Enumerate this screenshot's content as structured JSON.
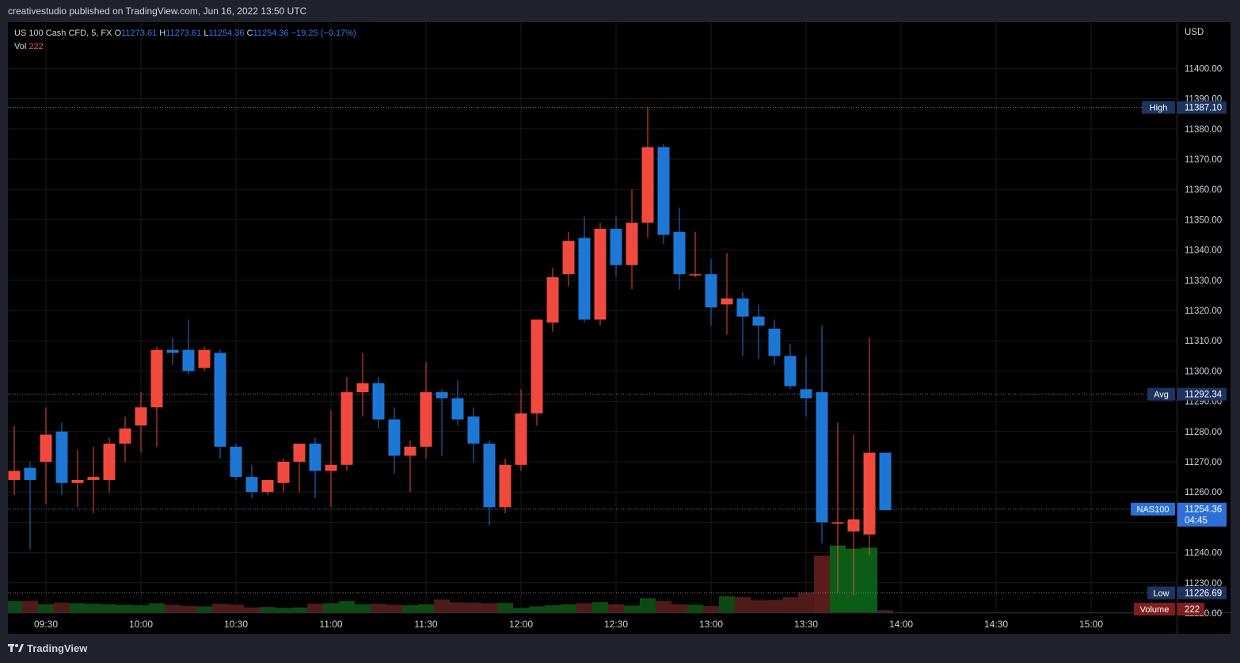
{
  "header": {
    "publisher_text": "creativestudio published on TradingView.com, Jun 16, 2022 13:50 UTC"
  },
  "legend": {
    "symbol": "US 100 Cash CFD, 5, FX",
    "open_label": "O",
    "open": "11273.61",
    "high_label": "H",
    "high": "11273.61",
    "low_label": "L",
    "low": "11254.36",
    "close_label": "C",
    "close": "11254.36",
    "change": "−19.25 (−0.17%)",
    "vol_label": "Vol",
    "vol": "222"
  },
  "footer": {
    "brand": "TradingView"
  },
  "colors": {
    "up": "#1e77d4",
    "down": "#f04a3e",
    "vol_up": "#0d4a13",
    "vol_down": "#4e1a1a",
    "vol_up_hi": "#0b5d15",
    "vol_down_hi": "#5a1b1b",
    "axis_text": "#d1d4dc",
    "grid": "#1a1a1a"
  },
  "chart_data": {
    "type": "candlestick",
    "currency_label": "USD",
    "yticks": [
      11220,
      11230,
      11240,
      11250,
      11260,
      11270,
      11280,
      11290,
      11300,
      11310,
      11320,
      11330,
      11340,
      11350,
      11360,
      11370,
      11380,
      11390,
      11400
    ],
    "xticks": [
      "09:30",
      "10:00",
      "10:30",
      "11:00",
      "11:30",
      "12:00",
      "12:30",
      "13:00",
      "13:30",
      "14:00",
      "14:30",
      "15:00"
    ],
    "price_labels": [
      {
        "name": "High",
        "value": "11387.10",
        "price": 11387.1,
        "style": "navy"
      },
      {
        "name": "Avg",
        "value": "11292.34",
        "price": 11292.34,
        "style": "navy"
      },
      {
        "name": "NAS100",
        "value": "11254.36",
        "sub": "04:45",
        "price": 11254.36,
        "style": "blue"
      },
      {
        "name": "Low",
        "value": "11226.69",
        "price": 11226.69,
        "style": "navy"
      }
    ],
    "volume_label": {
      "name": "Volume",
      "value": "222"
    },
    "candles": [
      {
        "t": "09:20",
        "o": 11264,
        "h": 11282,
        "l": 11259,
        "c": 11267,
        "v": 210
      },
      {
        "t": "09:25",
        "o": 11268,
        "h": 11270,
        "l": 11241,
        "c": 11264,
        "v": 215
      },
      {
        "t": "09:30",
        "o": 11270,
        "h": 11288,
        "l": 11256,
        "c": 11279,
        "v": 150
      },
      {
        "t": "09:35",
        "o": 11280,
        "h": 11283,
        "l": 11259,
        "c": 11263,
        "v": 180
      },
      {
        "t": "09:40",
        "o": 11263,
        "h": 11274,
        "l": 11255,
        "c": 11264,
        "v": 170
      },
      {
        "t": "09:45",
        "o": 11264,
        "h": 11275,
        "l": 11253,
        "c": 11265,
        "v": 160
      },
      {
        "t": "09:50",
        "o": 11264,
        "h": 11278,
        "l": 11260,
        "c": 11276,
        "v": 150
      },
      {
        "t": "09:55",
        "o": 11276,
        "h": 11285,
        "l": 11270,
        "c": 11281,
        "v": 140
      },
      {
        "t": "10:00",
        "o": 11282,
        "h": 11293,
        "l": 11273,
        "c": 11288,
        "v": 130
      },
      {
        "t": "10:05",
        "o": 11288,
        "h": 11308,
        "l": 11275,
        "c": 11307,
        "v": 170
      },
      {
        "t": "10:10",
        "o": 11307,
        "h": 11311,
        "l": 11302,
        "c": 11306,
        "v": 140
      },
      {
        "t": "10:15",
        "o": 11307,
        "h": 11317,
        "l": 11299,
        "c": 11300,
        "v": 120
      },
      {
        "t": "10:20",
        "o": 11301,
        "h": 11308,
        "l": 11300,
        "c": 11307,
        "v": 110
      },
      {
        "t": "10:25",
        "o": 11306,
        "h": 11307,
        "l": 11271,
        "c": 11275,
        "v": 160
      },
      {
        "t": "10:30",
        "o": 11275,
        "h": 11276,
        "l": 11264,
        "c": 11265,
        "v": 145
      },
      {
        "t": "10:35",
        "o": 11265,
        "h": 11269,
        "l": 11258,
        "c": 11260,
        "v": 90
      },
      {
        "t": "10:40",
        "o": 11260,
        "h": 11264,
        "l": 11259,
        "c": 11264,
        "v": 100
      },
      {
        "t": "10:45",
        "o": 11263,
        "h": 11271,
        "l": 11260,
        "c": 11270,
        "v": 80
      },
      {
        "t": "10:50",
        "o": 11270,
        "h": 11276,
        "l": 11260,
        "c": 11276,
        "v": 90
      },
      {
        "t": "10:55",
        "o": 11276,
        "h": 11278,
        "l": 11258,
        "c": 11267,
        "v": 160
      },
      {
        "t": "11:00",
        "o": 11267,
        "h": 11287,
        "l": 11255,
        "c": 11269,
        "v": 170
      },
      {
        "t": "11:05",
        "o": 11269,
        "h": 11298,
        "l": 11267,
        "c": 11293,
        "v": 210
      },
      {
        "t": "11:10",
        "o": 11293,
        "h": 11306,
        "l": 11285,
        "c": 11296,
        "v": 150
      },
      {
        "t": "11:15",
        "o": 11296,
        "h": 11298,
        "l": 11281,
        "c": 11284,
        "v": 160
      },
      {
        "t": "11:20",
        "o": 11284,
        "h": 11288,
        "l": 11266,
        "c": 11272,
        "v": 140
      },
      {
        "t": "11:25",
        "o": 11272,
        "h": 11277,
        "l": 11260,
        "c": 11275,
        "v": 130
      },
      {
        "t": "11:30",
        "o": 11275,
        "h": 11303,
        "l": 11271,
        "c": 11293,
        "v": 150
      },
      {
        "t": "11:35",
        "o": 11293,
        "h": 11294,
        "l": 11272,
        "c": 11291,
        "v": 240
      },
      {
        "t": "11:40",
        "o": 11291,
        "h": 11297,
        "l": 11282,
        "c": 11284,
        "v": 185
      },
      {
        "t": "11:45",
        "o": 11285,
        "h": 11288,
        "l": 11270,
        "c": 11276,
        "v": 180
      },
      {
        "t": "11:50",
        "o": 11276,
        "h": 11277,
        "l": 11249,
        "c": 11255,
        "v": 170
      },
      {
        "t": "11:55",
        "o": 11255,
        "h": 11271,
        "l": 11253,
        "c": 11269,
        "v": 175
      },
      {
        "t": "12:00",
        "o": 11269,
        "h": 11294,
        "l": 11267,
        "c": 11286,
        "v": 80
      },
      {
        "t": "12:05",
        "o": 11286,
        "h": 11317,
        "l": 11282,
        "c": 11317,
        "v": 110
      },
      {
        "t": "12:10",
        "o": 11316,
        "h": 11334,
        "l": 11313,
        "c": 11331,
        "v": 130
      },
      {
        "t": "12:15",
        "o": 11332,
        "h": 11346,
        "l": 11328,
        "c": 11343,
        "v": 150
      },
      {
        "t": "12:20",
        "o": 11344,
        "h": 11351,
        "l": 11316,
        "c": 11317,
        "v": 170
      },
      {
        "t": "12:25",
        "o": 11317,
        "h": 11349,
        "l": 11315,
        "c": 11347,
        "v": 190
      },
      {
        "t": "12:30",
        "o": 11347,
        "h": 11351,
        "l": 11331,
        "c": 11335,
        "v": 150
      },
      {
        "t": "12:35",
        "o": 11335,
        "h": 11360,
        "l": 11327,
        "c": 11349,
        "v": 125
      },
      {
        "t": "12:40",
        "o": 11349,
        "h": 11387,
        "l": 11344,
        "c": 11374,
        "v": 260
      },
      {
        "t": "12:45",
        "o": 11374,
        "h": 11375,
        "l": 11342,
        "c": 11345,
        "v": 210
      },
      {
        "t": "12:50",
        "o": 11346,
        "h": 11354,
        "l": 11327,
        "c": 11332,
        "v": 150
      },
      {
        "t": "12:55",
        "o": 11332,
        "h": 11346,
        "l": 11331,
        "c": 11332,
        "v": 140
      },
      {
        "t": "13:00",
        "o": 11332,
        "h": 11337,
        "l": 11315,
        "c": 11321,
        "v": 120
      },
      {
        "t": "13:05",
        "o": 11322,
        "h": 11339,
        "l": 11312,
        "c": 11324,
        "v": 300
      },
      {
        "t": "13:10",
        "o": 11324,
        "h": 11326,
        "l": 11305,
        "c": 11318,
        "v": 280
      },
      {
        "t": "13:15",
        "o": 11318,
        "h": 11322,
        "l": 11304,
        "c": 11315,
        "v": 225
      },
      {
        "t": "13:20",
        "o": 11314,
        "h": 11317,
        "l": 11302,
        "c": 11305,
        "v": 230
      },
      {
        "t": "13:25",
        "o": 11305,
        "h": 11309,
        "l": 11294,
        "c": 11295,
        "v": 280
      },
      {
        "t": "13:30",
        "o": 11294,
        "h": 11305,
        "l": 11285,
        "c": 11291,
        "v": 370
      },
      {
        "t": "13:35",
        "o": 11293,
        "h": 11315,
        "l": 11243,
        "c": 11250,
        "v": 1050
      },
      {
        "t": "13:40",
        "o": 11250,
        "h": 11283,
        "l": 11227,
        "c": 11250,
        "v": 1240
      },
      {
        "t": "13:45",
        "o": 11247,
        "h": 11279,
        "l": 11226,
        "c": 11251,
        "v": 1180
      },
      {
        "t": "13:50",
        "o": 11246,
        "h": 11311,
        "l": 11239,
        "c": 11273,
        "v": 1200
      },
      {
        "t": "13:55",
        "o": 11273,
        "h": 11273,
        "l": 11254,
        "c": 11254,
        "v": 40
      }
    ]
  }
}
